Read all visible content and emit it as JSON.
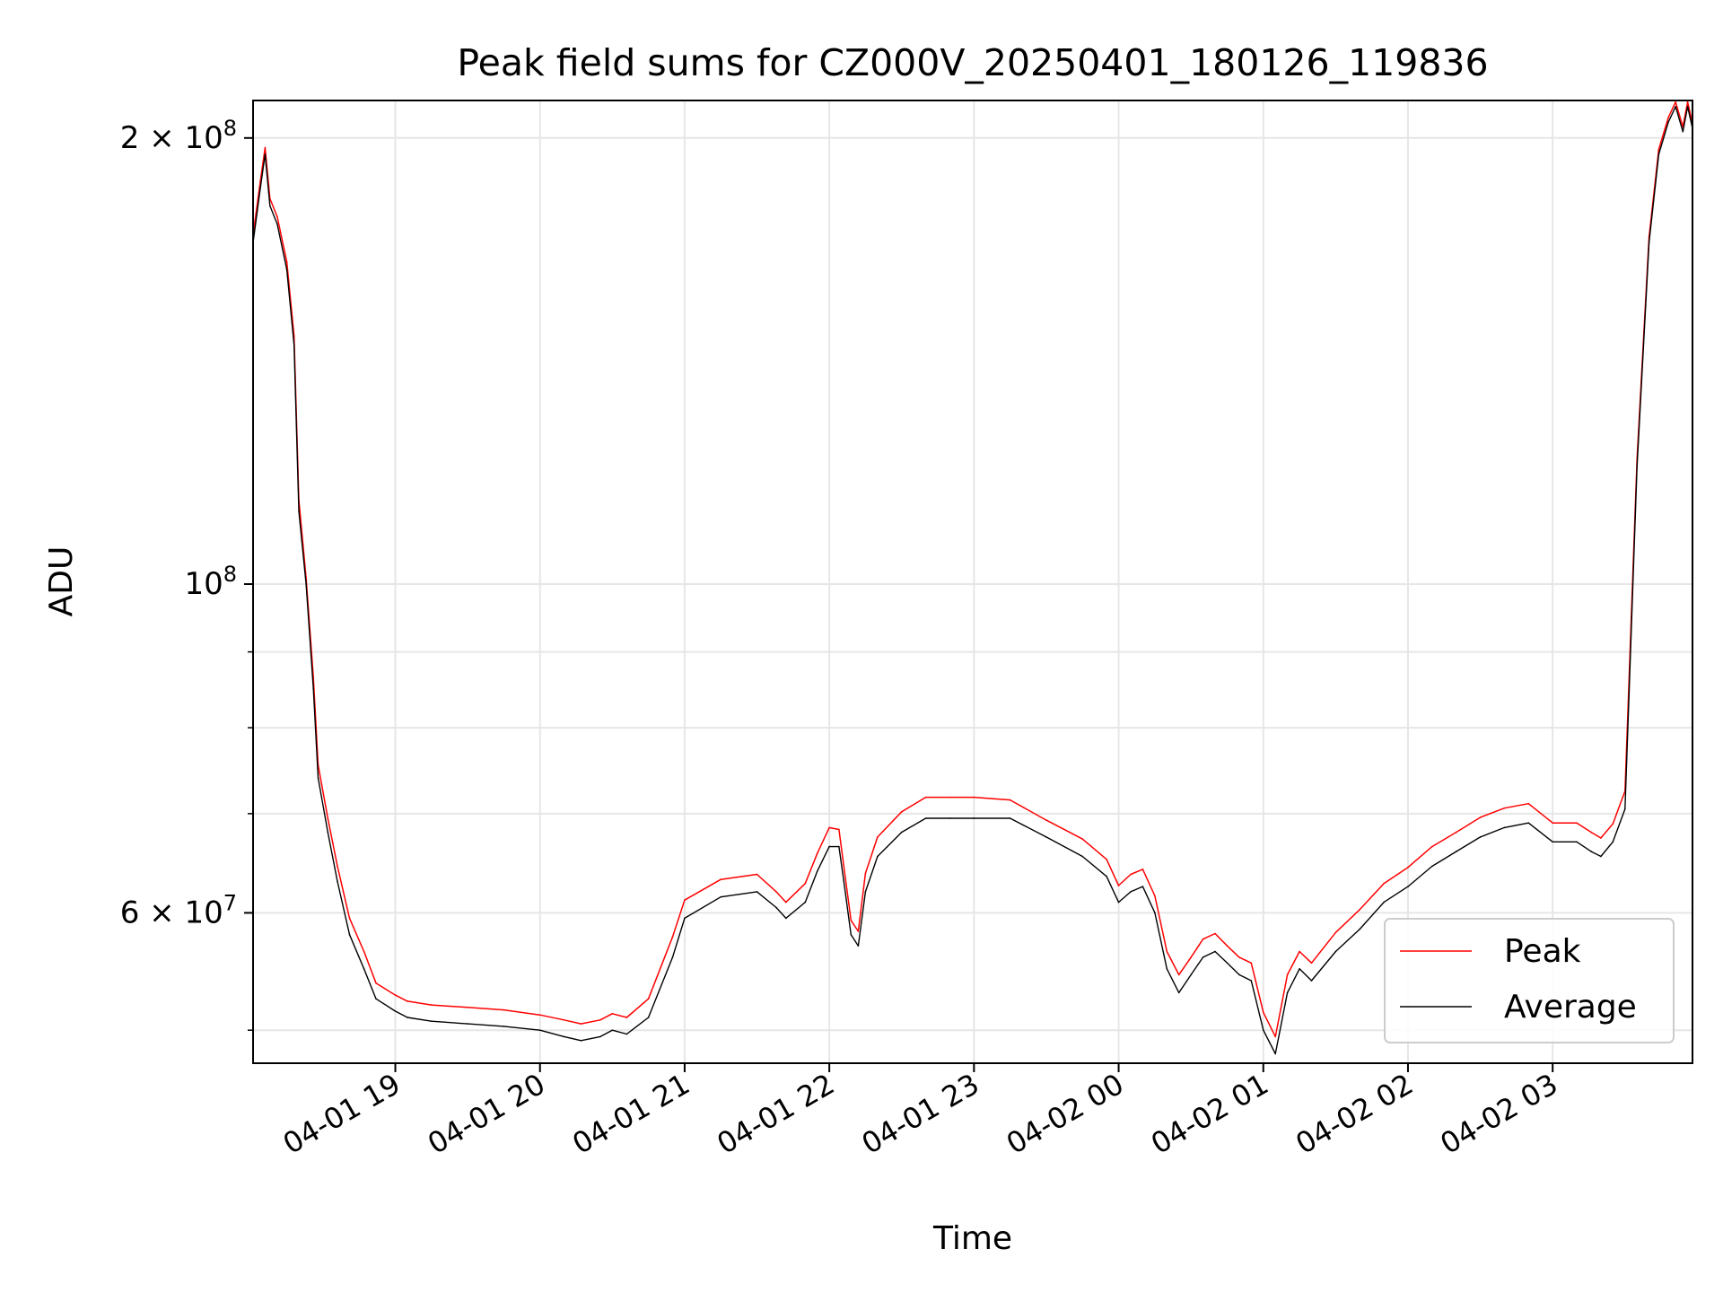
{
  "chart_data": {
    "type": "line",
    "title": "Peak field sums for CZ000V_20250401_180126_119836",
    "xlabel": "Time",
    "ylabel": "ADU",
    "x_ticks": [
      "04-01 19",
      "04-01 20",
      "04-01 21",
      "04-01 22",
      "04-01 23",
      "04-02 00",
      "04-02 01",
      "04-02 02",
      "04-02 03"
    ],
    "x_start_label": "04-01 18:01",
    "xlim": [
      "2025-04-01 18:01",
      "2025-04-02 03:58"
    ],
    "yscale": "log",
    "ylim": [
      47500000,
      212000000
    ],
    "y_major_ticks": [
      {
        "value": 60000000,
        "mantissa": "6",
        "times": "×",
        "base": "10",
        "exp": "7"
      },
      {
        "value": 100000000,
        "mantissa": "",
        "times": "",
        "base": "10",
        "exp": "8"
      },
      {
        "value": 200000000,
        "mantissa": "2",
        "times": "×",
        "base": "10",
        "exp": "8"
      }
    ],
    "y_minor_ticks": [
      50000000,
      70000000,
      80000000,
      90000000
    ],
    "grid": true,
    "legend": {
      "placement": "lower-right",
      "entries": [
        {
          "label": "Peak",
          "color": "#ff0000"
        },
        {
          "label": "Average",
          "color": "#000000"
        }
      ]
    },
    "series": [
      {
        "name": "Average",
        "color": "#000000",
        "x": [
          "2025-04-01 18:01",
          "2025-04-01 18:04",
          "2025-04-01 18:06",
          "2025-04-01 18:08",
          "2025-04-01 18:11",
          "2025-04-01 18:15",
          "2025-04-01 18:18",
          "2025-04-01 18:20",
          "2025-04-01 18:23",
          "2025-04-01 18:26",
          "2025-04-01 18:28",
          "2025-04-01 18:32",
          "2025-04-01 18:36",
          "2025-04-01 18:41",
          "2025-04-01 18:47",
          "2025-04-01 18:52",
          "2025-04-01 19:00",
          "2025-04-01 19:05",
          "2025-04-01 19:15",
          "2025-04-01 19:30",
          "2025-04-01 19:45",
          "2025-04-01 20:00",
          "2025-04-01 20:10",
          "2025-04-01 20:17",
          "2025-04-01 20:25",
          "2025-04-01 20:30",
          "2025-04-01 20:36",
          "2025-04-01 20:45",
          "2025-04-01 20:55",
          "2025-04-01 21:00",
          "2025-04-01 21:15",
          "2025-04-01 21:30",
          "2025-04-01 21:38",
          "2025-04-01 21:42",
          "2025-04-01 21:50",
          "2025-04-01 21:55",
          "2025-04-01 22:00",
          "2025-04-01 22:04",
          "2025-04-01 22:06",
          "2025-04-01 22:09",
          "2025-04-01 22:12",
          "2025-04-01 22:15",
          "2025-04-01 22:20",
          "2025-04-01 22:30",
          "2025-04-01 22:40",
          "2025-04-01 22:50",
          "2025-04-01 23:00",
          "2025-04-01 23:15",
          "2025-04-01 23:30",
          "2025-04-01 23:45",
          "2025-04-01 23:55",
          "2025-04-02 00:00",
          "2025-04-02 00:05",
          "2025-04-02 00:10",
          "2025-04-02 00:15",
          "2025-04-02 00:20",
          "2025-04-02 00:25",
          "2025-04-02 00:30",
          "2025-04-02 00:35",
          "2025-04-02 00:40",
          "2025-04-02 00:45",
          "2025-04-02 00:50",
          "2025-04-02 00:55",
          "2025-04-02 01:00",
          "2025-04-02 01:05",
          "2025-04-02 01:10",
          "2025-04-02 01:15",
          "2025-04-02 01:20",
          "2025-04-02 01:30",
          "2025-04-02 01:40",
          "2025-04-02 01:50",
          "2025-04-02 02:00",
          "2025-04-02 02:10",
          "2025-04-02 02:20",
          "2025-04-02 02:30",
          "2025-04-02 02:40",
          "2025-04-02 02:50",
          "2025-04-02 03:00",
          "2025-04-02 03:10",
          "2025-04-02 03:16",
          "2025-04-02 03:20",
          "2025-04-02 03:25",
          "2025-04-02 03:30",
          "2025-04-02 03:35",
          "2025-04-02 03:40",
          "2025-04-02 03:44",
          "2025-04-02 03:48",
          "2025-04-02 03:51",
          "2025-04-02 03:54",
          "2025-04-02 03:56",
          "2025-04-02 03:58"
        ],
        "values": [
          170000000,
          185000000,
          195000000,
          180000000,
          175000000,
          163000000,
          145000000,
          112000000,
          100000000,
          85000000,
          74000000,
          68000000,
          63000000,
          58000000,
          55000000,
          52500000,
          51500000,
          51000000,
          50700000,
          50500000,
          50300000,
          50000000,
          49500000,
          49200000,
          49500000,
          50000000,
          49700000,
          51000000,
          56000000,
          59500000,
          61500000,
          62000000,
          60500000,
          59500000,
          61000000,
          64000000,
          66500000,
          66500000,
          63000000,
          58000000,
          57000000,
          62000000,
          65500000,
          68000000,
          69500000,
          69500000,
          69500000,
          69500000,
          67500000,
          65500000,
          63500000,
          61000000,
          62000000,
          62500000,
          60000000,
          55000000,
          53000000,
          54500000,
          56000000,
          56500000,
          55500000,
          54500000,
          54000000,
          50000000,
          48200000,
          53000000,
          55000000,
          54000000,
          56500000,
          58500000,
          61000000,
          62500000,
          64500000,
          66000000,
          67500000,
          68500000,
          69000000,
          67000000,
          67000000,
          66000000,
          65500000,
          67000000,
          70500000,
          120000000,
          170000000,
          195000000,
          205000000,
          210000000,
          202000000,
          210000000,
          203000000
        ]
      },
      {
        "name": "Peak",
        "color": "#ff0000",
        "x": [
          "2025-04-01 18:01",
          "2025-04-01 18:04",
          "2025-04-01 18:06",
          "2025-04-01 18:08",
          "2025-04-01 18:11",
          "2025-04-01 18:15",
          "2025-04-01 18:18",
          "2025-04-01 18:20",
          "2025-04-01 18:23",
          "2025-04-01 18:26",
          "2025-04-01 18:28",
          "2025-04-01 18:32",
          "2025-04-01 18:36",
          "2025-04-01 18:41",
          "2025-04-01 18:47",
          "2025-04-01 18:52",
          "2025-04-01 19:00",
          "2025-04-01 19:05",
          "2025-04-01 19:15",
          "2025-04-01 19:30",
          "2025-04-01 19:45",
          "2025-04-01 20:00",
          "2025-04-01 20:10",
          "2025-04-01 20:17",
          "2025-04-01 20:25",
          "2025-04-01 20:30",
          "2025-04-01 20:36",
          "2025-04-01 20:45",
          "2025-04-01 20:55",
          "2025-04-01 21:00",
          "2025-04-01 21:15",
          "2025-04-01 21:30",
          "2025-04-01 21:38",
          "2025-04-01 21:42",
          "2025-04-01 21:50",
          "2025-04-01 21:55",
          "2025-04-01 22:00",
          "2025-04-01 22:04",
          "2025-04-01 22:06",
          "2025-04-01 22:09",
          "2025-04-01 22:12",
          "2025-04-01 22:15",
          "2025-04-01 22:20",
          "2025-04-01 22:30",
          "2025-04-01 22:40",
          "2025-04-01 22:50",
          "2025-04-01 23:00",
          "2025-04-01 23:15",
          "2025-04-01 23:30",
          "2025-04-01 23:45",
          "2025-04-01 23:55",
          "2025-04-02 00:00",
          "2025-04-02 00:05",
          "2025-04-02 00:10",
          "2025-04-02 00:15",
          "2025-04-02 00:20",
          "2025-04-02 00:25",
          "2025-04-02 00:30",
          "2025-04-02 00:35",
          "2025-04-02 00:40",
          "2025-04-02 00:45",
          "2025-04-02 00:50",
          "2025-04-02 00:55",
          "2025-04-02 01:00",
          "2025-04-02 01:05",
          "2025-04-02 01:10",
          "2025-04-02 01:15",
          "2025-04-02 01:20",
          "2025-04-02 01:30",
          "2025-04-02 01:40",
          "2025-04-02 01:50",
          "2025-04-02 02:00",
          "2025-04-02 02:10",
          "2025-04-02 02:20",
          "2025-04-02 02:30",
          "2025-04-02 02:40",
          "2025-04-02 02:50",
          "2025-04-02 03:00",
          "2025-04-02 03:10",
          "2025-04-02 03:16",
          "2025-04-02 03:20",
          "2025-04-02 03:25",
          "2025-04-02 03:30",
          "2025-04-02 03:35",
          "2025-04-02 03:40",
          "2025-04-02 03:44",
          "2025-04-02 03:48",
          "2025-04-02 03:51",
          "2025-04-02 03:54",
          "2025-04-02 03:56",
          "2025-04-02 03:58"
        ],
        "values": [
          172000000,
          187000000,
          197000000,
          182000000,
          177000000,
          165000000,
          147000000,
          114000000,
          101000000,
          86500000,
          75500000,
          69500000,
          64500000,
          59500000,
          56500000,
          53800000,
          52800000,
          52300000,
          52000000,
          51800000,
          51600000,
          51200000,
          50800000,
          50500000,
          50800000,
          51300000,
          51000000,
          52500000,
          57800000,
          61200000,
          63200000,
          63700000,
          62000000,
          61000000,
          62800000,
          65800000,
          68500000,
          68300000,
          64500000,
          59300000,
          58300000,
          63800000,
          67500000,
          70200000,
          71800000,
          71800000,
          71800000,
          71500000,
          69300000,
          67300000,
          65200000,
          62600000,
          63700000,
          64200000,
          61600000,
          56500000,
          54500000,
          56000000,
          57600000,
          58100000,
          57000000,
          56000000,
          55500000,
          51400000,
          49500000,
          54500000,
          56500000,
          55500000,
          58200000,
          60300000,
          62800000,
          64400000,
          66500000,
          68000000,
          69600000,
          70600000,
          71100000,
          69000000,
          69000000,
          68000000,
          67400000,
          68900000,
          72500000,
          121500000,
          171500000,
          196500000,
          206500000,
          211500000,
          203500000,
          211500000,
          204500000
        ]
      }
    ]
  }
}
